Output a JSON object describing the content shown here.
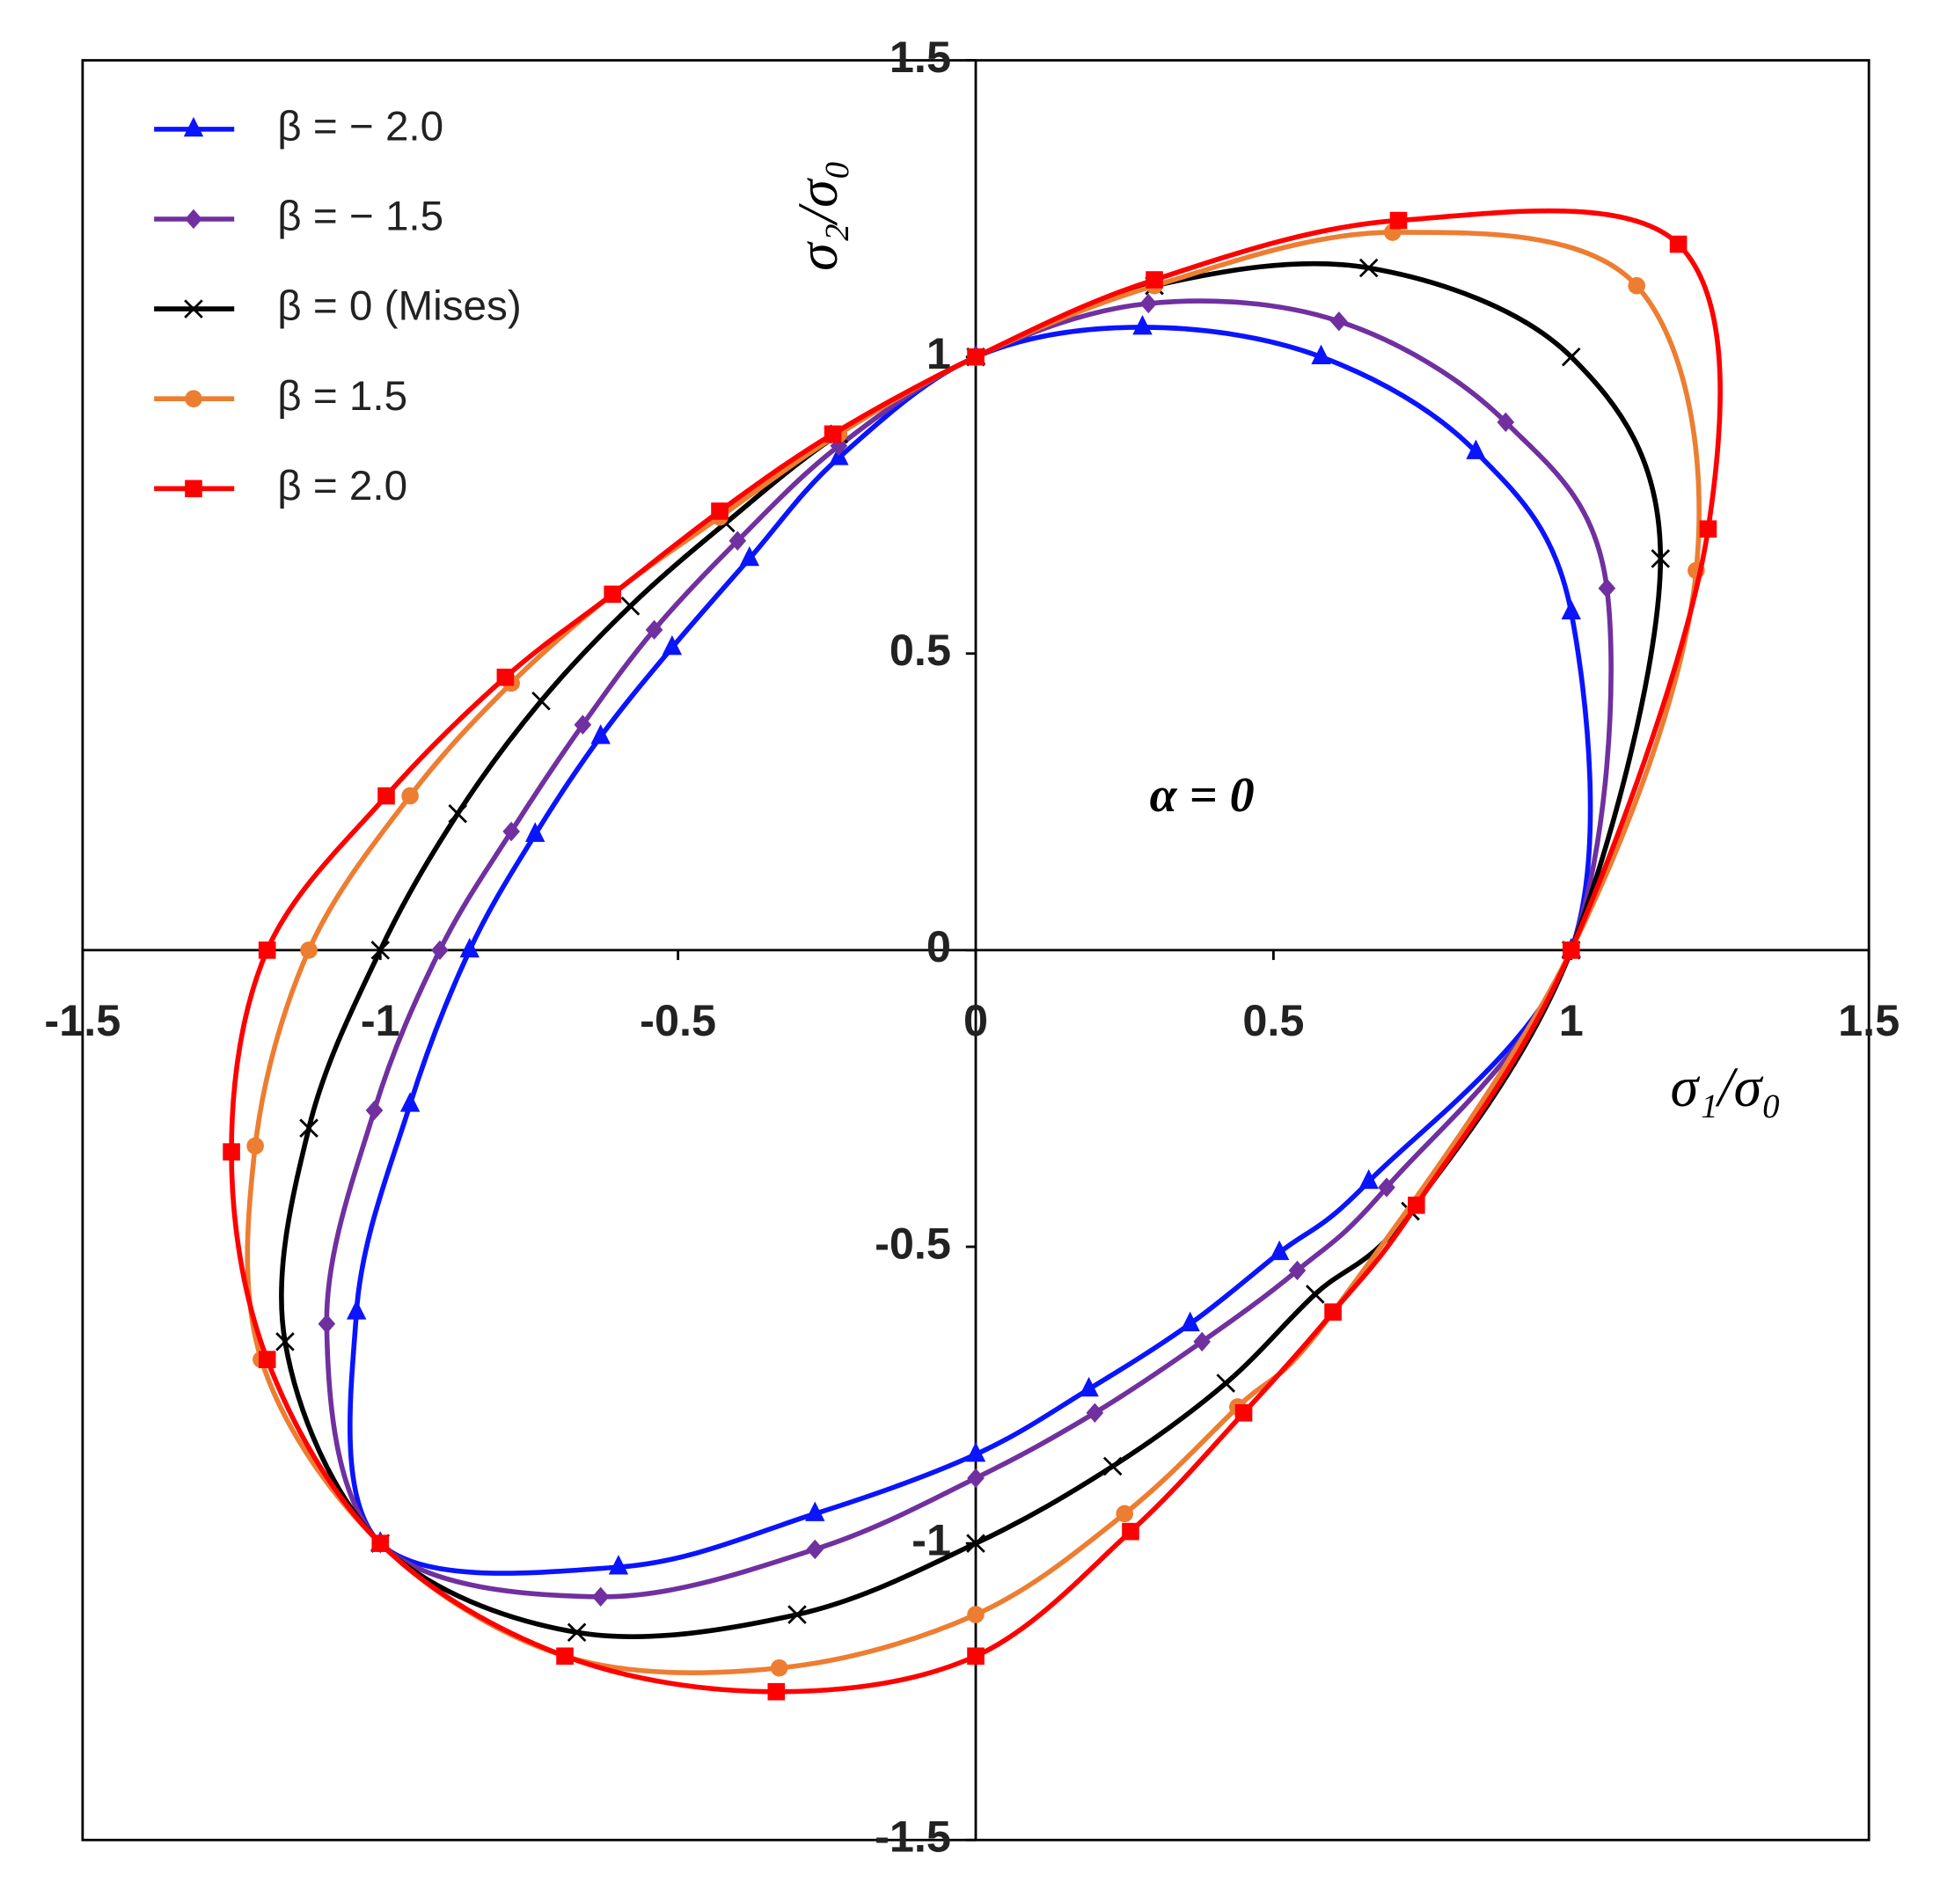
{
  "chart_data": {
    "type": "line",
    "annotation": "α = 0",
    "x_label": "σ₁/σ₀",
    "y_label": "σ₂/σ₀",
    "xlim": [
      -1.5,
      1.5
    ],
    "ylim": [
      -1.5,
      1.5
    ],
    "xticks": [
      -1.5,
      -1,
      -0.5,
      0,
      0.5,
      1,
      1.5
    ],
    "yticks": [
      -1.5,
      -1,
      -0.5,
      0,
      0.5,
      1,
      1.5
    ],
    "legend": "upper left",
    "closed": true,
    "series": [
      {
        "name": "β = − 2.0",
        "color": "#0a14ff",
        "marker": "triangle",
        "x": [
          0,
          0.28,
          0.58,
          0.84,
          1.0,
          1.0,
          0.66,
          0.51,
          0.36,
          0.19,
          0,
          -0.27,
          -0.6,
          -1,
          -1.04,
          -0.95,
          -0.85,
          -0.74,
          -0.63,
          -0.51,
          -0.38,
          -0.23
        ],
        "values": [
          1,
          1.05,
          1.0,
          0.84,
          0.57,
          0,
          -0.39,
          -0.51,
          -0.63,
          -0.74,
          -0.85,
          -0.95,
          -1.04,
          -1,
          -0.61,
          -0.26,
          0,
          0.195,
          0.36,
          0.51,
          0.66,
          0.83
        ]
      },
      {
        "name": "β = − 1.5",
        "color": "#7030a0",
        "marker": "diamond",
        "x": [
          0,
          0.29,
          0.61,
          0.89,
          1.06,
          1,
          0.69,
          0.54,
          0.38,
          0.2,
          0,
          -0.27,
          -0.63,
          -1,
          -1.09,
          -1.01,
          -0.9,
          -0.78,
          -0.66,
          -0.54,
          -0.4,
          -0.23
        ],
        "values": [
          1,
          1.09,
          1.06,
          0.89,
          0.61,
          0,
          -0.4,
          -0.54,
          -0.66,
          -0.78,
          -0.89,
          -1.01,
          -1.09,
          -1,
          -0.63,
          -0.27,
          0,
          0.2,
          0.38,
          0.54,
          0.69,
          0.85
        ]
      },
      {
        "name": "β = 0 (Mises)",
        "color": "#000000",
        "marker": "x",
        "x": [
          0,
          0.3,
          0.66,
          1.0,
          1.15,
          1,
          0.73,
          0.57,
          0.42,
          0.23,
          0,
          -0.3,
          -0.67,
          -1,
          -1.16,
          -1.12,
          -1,
          -0.87,
          -0.73,
          -0.58,
          -0.42,
          -0.23
        ],
        "values": [
          1,
          1.12,
          1.15,
          1.0,
          0.66,
          0,
          -0.44,
          -0.58,
          -0.73,
          -0.87,
          -1,
          -1.12,
          -1.15,
          -1,
          -0.66,
          -0.3,
          0,
          0.23,
          0.42,
          0.58,
          0.72,
          0.87
        ]
      },
      {
        "name": "β = 1.5",
        "color": "#ed7d31",
        "marker": "circle",
        "x": [
          0,
          0.3,
          0.7,
          1.11,
          1.21,
          1,
          0.6,
          0.44,
          0.25,
          0,
          -0.33,
          -0.69,
          -1,
          -1.2,
          -1.21,
          -1.12,
          -0.95,
          -0.78,
          -0.61,
          -0.43,
          -0.23
        ],
        "values": [
          1,
          1.12,
          1.21,
          1.12,
          0.64,
          0,
          -0.61,
          -0.77,
          -0.95,
          -1.12,
          -1.21,
          -1.19,
          -1,
          -0.69,
          -0.33,
          0,
          0.26,
          0.45,
          0.6,
          0.73,
          0.87
        ]
      },
      {
        "name": "β = 2.0",
        "color": "#ff0000",
        "marker": "square",
        "x": [
          0,
          0.3,
          0.71,
          1.18,
          1.23,
          1,
          0.74,
          0.6,
          0.45,
          0.26,
          0,
          -0.335,
          -0.69,
          -1,
          -1.19,
          -1.25,
          -1.19,
          -0.99,
          -0.79,
          -0.61,
          -0.43,
          -0.24
        ],
        "values": [
          1,
          1.13,
          1.23,
          1.19,
          0.71,
          0,
          -0.43,
          -0.61,
          -0.78,
          -0.98,
          -1.19,
          -1.25,
          -1.19,
          -1,
          -0.69,
          -0.34,
          0,
          0.26,
          0.46,
          0.6,
          0.74,
          0.87
        ]
      }
    ]
  }
}
